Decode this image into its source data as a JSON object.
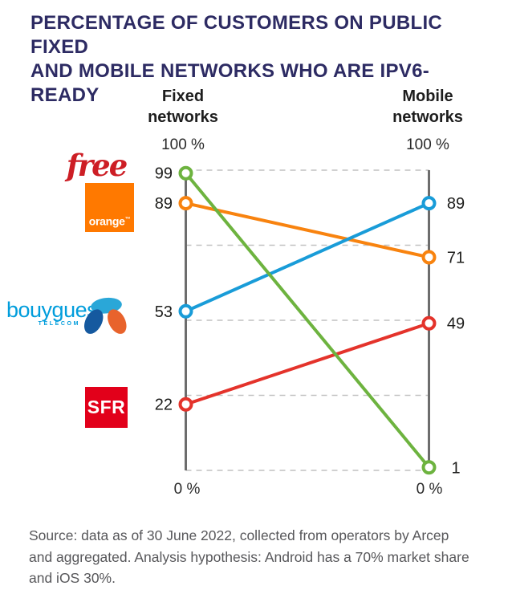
{
  "title": {
    "line1": "PERCENTAGE OF CUSTOMERS ON PUBLIC FIXED",
    "line2": "AND MOBILE NETWORKS WHO ARE IPV6-READY"
  },
  "chart_data": {
    "type": "line",
    "subtype": "slope-chart",
    "title": "PERCENTAGE OF CUSTOMERS ON PUBLIC FIXED AND MOBILE NETWORKS WHO ARE IPV6-READY",
    "ylim": [
      0,
      100
    ],
    "gridline_values": [
      0,
      25,
      50,
      75,
      100
    ],
    "grid": true,
    "axes": [
      {
        "id": "fixed",
        "title": "Fixed networks",
        "top_label": "100 %",
        "bottom_label": "0 %"
      },
      {
        "id": "mobile",
        "title": "Mobile networks",
        "top_label": "100 %",
        "bottom_label": "0 %"
      }
    ],
    "series": [
      {
        "id": "free",
        "name": "Free",
        "color": "#6db33f",
        "values": {
          "fixed": 99,
          "mobile": 1
        }
      },
      {
        "id": "orange",
        "name": "Orange",
        "color": "#f8830f",
        "values": {
          "fixed": 89,
          "mobile": 71
        }
      },
      {
        "id": "bouygues",
        "name": "Bouygues Telecom",
        "color": "#199cd8",
        "values": {
          "fixed": 53,
          "mobile": 89
        }
      },
      {
        "id": "sfr",
        "name": "SFR",
        "color": "#e4332b",
        "values": {
          "fixed": 22,
          "mobile": 49
        }
      }
    ],
    "source": "Source: data as of 30 June 2022, collected from operators by Arcep and aggregated. Analysis hypothesis: Android has a 70% market share and iOS 30%."
  },
  "logos": {
    "free": {
      "text": "free",
      "color": "#cd1e25"
    },
    "orange": {
      "text": "orange",
      "tm": "™",
      "bg": "#ff7900"
    },
    "bouygues": {
      "text": "bouygues",
      "subtext": "TELECOM",
      "color": "#009ddc"
    },
    "sfr": {
      "text": "SFR",
      "bg": "#e2001a"
    }
  },
  "footer": {
    "text": "Source: data as of 30 June 2022, collected from operators by Arcep and aggregated. Analysis hypothesis: Android has a 70% market share and iOS 30%."
  }
}
